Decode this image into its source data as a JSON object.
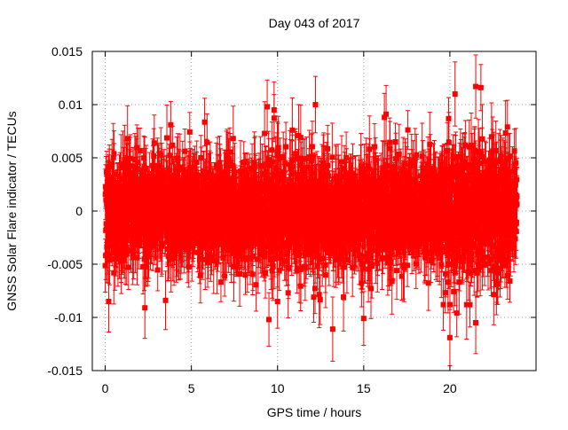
{
  "chart_data": {
    "type": "scatter",
    "title": "Day 043 of 2017",
    "xlabel": "GPS time / hours",
    "ylabel": "GNSS Solar Flare indicator / TECUs",
    "xlim": [
      -0.75,
      25
    ],
    "ylim": [
      -0.015,
      0.015
    ],
    "x_ticks": [
      0,
      5,
      10,
      15,
      20
    ],
    "x_tick_labels": [
      "0",
      "5",
      "10",
      "15",
      "20"
    ],
    "y_ticks": [
      -0.015,
      -0.01,
      -0.005,
      0,
      0.005,
      0.01,
      0.015
    ],
    "y_tick_labels": [
      "-0.015",
      "-0.01",
      "-0.005",
      "0",
      "0.005",
      "0.01",
      "0.015"
    ],
    "grid": true,
    "series_color": "#ff0000",
    "series": [
      {
        "name": "GNSS Solar Flare indicator",
        "x_range_hours": [
          0,
          23.9
        ],
        "sample_interval_hours": 0.0083,
        "center": 0.0,
        "typical_spread": 0.006,
        "typical_error": 0.0025,
        "notable_points": [
          {
            "x": 9.4,
            "y": 0.0098
          },
          {
            "x": 9.8,
            "y": 0.0095
          },
          {
            "x": 12.2,
            "y": 0.01
          },
          {
            "x": 21.5,
            "y": 0.0117
          },
          {
            "x": 21.8,
            "y": 0.0116
          },
          {
            "x": 9.5,
            "y": -0.0102
          },
          {
            "x": 13.2,
            "y": -0.0111
          },
          {
            "x": 15.0,
            "y": -0.0101
          },
          {
            "x": 20.0,
            "y": -0.0119
          },
          {
            "x": 21.5,
            "y": -0.0105
          },
          {
            "x": 2.3,
            "y": -0.0091
          },
          {
            "x": 3.5,
            "y": -0.0084
          },
          {
            "x": 0.2,
            "y": -0.0085
          },
          {
            "x": 3.8,
            "y": 0.0081
          },
          {
            "x": 16.2,
            "y": 0.0088
          },
          {
            "x": 16.3,
            "y": 0.0091
          },
          {
            "x": 20.4,
            "y": -0.0096
          },
          {
            "x": 20.3,
            "y": 0.011
          },
          {
            "x": 12.1,
            "y": -0.0081
          },
          {
            "x": 10.0,
            "y": -0.0085
          }
        ]
      }
    ]
  }
}
